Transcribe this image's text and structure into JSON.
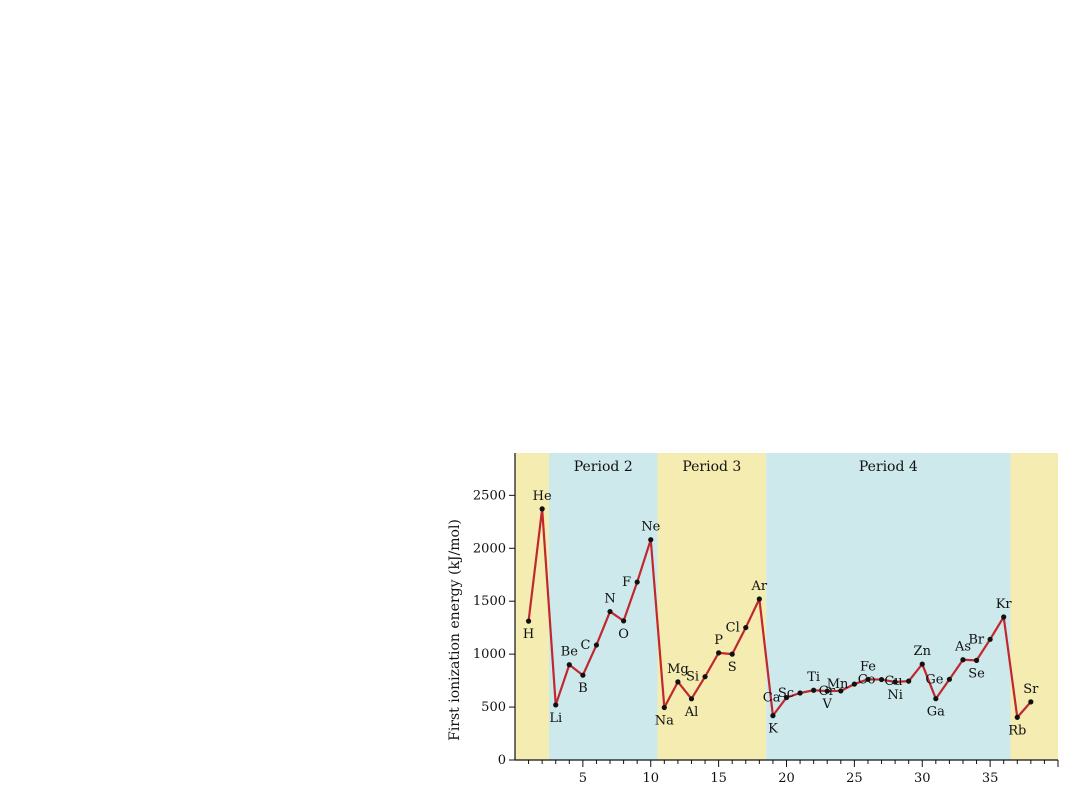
{
  "chart_data": {
    "type": "line",
    "title": "",
    "xlabel": "",
    "ylabel": "First ionization energy (kJ/mol)",
    "xlim": [
      0,
      40
    ],
    "ylim": [
      0,
      2900
    ],
    "x_ticks": [
      5,
      10,
      15,
      20,
      25,
      30,
      35
    ],
    "y_ticks": [
      0,
      500,
      1000,
      1500,
      2000,
      2500
    ],
    "y_tick_labels": [
      "0",
      "500",
      "1000",
      "1500",
      "2000",
      "2500"
    ],
    "series": [
      {
        "color": "#c0282e",
        "points": [
          {
            "x": 1,
            "y": 1312,
            "label": "H"
          },
          {
            "x": 2,
            "y": 2372,
            "label": "He"
          },
          {
            "x": 3,
            "y": 520,
            "label": "Li"
          },
          {
            "x": 4,
            "y": 900,
            "label": "Be"
          },
          {
            "x": 5,
            "y": 801,
            "label": "B"
          },
          {
            "x": 6,
            "y": 1086,
            "label": "C"
          },
          {
            "x": 7,
            "y": 1402,
            "label": "N"
          },
          {
            "x": 8,
            "y": 1314,
            "label": "O"
          },
          {
            "x": 9,
            "y": 1681,
            "label": "F"
          },
          {
            "x": 10,
            "y": 2081,
            "label": "Ne"
          },
          {
            "x": 11,
            "y": 496,
            "label": "Na"
          },
          {
            "x": 12,
            "y": 738,
            "label": "Mg"
          },
          {
            "x": 13,
            "y": 578,
            "label": "Al"
          },
          {
            "x": 14,
            "y": 787,
            "label": "Si"
          },
          {
            "x": 15,
            "y": 1012,
            "label": "P"
          },
          {
            "x": 16,
            "y": 1000,
            "label": "S"
          },
          {
            "x": 17,
            "y": 1251,
            "label": "Cl"
          },
          {
            "x": 18,
            "y": 1521,
            "label": "Ar"
          },
          {
            "x": 19,
            "y": 419,
            "label": "K"
          },
          {
            "x": 20,
            "y": 590,
            "label": "Ca"
          },
          {
            "x": 21,
            "y": 633,
            "label": "Sc"
          },
          {
            "x": 22,
            "y": 659,
            "label": "Ti"
          },
          {
            "x": 23,
            "y": 651,
            "label": "V"
          },
          {
            "x": 24,
            "y": 653,
            "label": "Cr"
          },
          {
            "x": 25,
            "y": 717,
            "label": "Mn"
          },
          {
            "x": 26,
            "y": 762,
            "label": "Fe"
          },
          {
            "x": 27,
            "y": 760,
            "label": "Co"
          },
          {
            "x": 28,
            "y": 737,
            "label": "Ni"
          },
          {
            "x": 29,
            "y": 745,
            "label": "Cu"
          },
          {
            "x": 30,
            "y": 906,
            "label": "Zn"
          },
          {
            "x": 31,
            "y": 579,
            "label": "Ga"
          },
          {
            "x": 32,
            "y": 762,
            "label": "Ge"
          },
          {
            "x": 33,
            "y": 947,
            "label": "As"
          },
          {
            "x": 34,
            "y": 941,
            "label": "Se"
          },
          {
            "x": 35,
            "y": 1140,
            "label": "Br"
          },
          {
            "x": 36,
            "y": 1351,
            "label": "Kr"
          },
          {
            "x": 37,
            "y": 403,
            "label": "Rb"
          },
          {
            "x": 38,
            "y": 549,
            "label": "Sr"
          }
        ]
      }
    ],
    "bands": [
      {
        "x0": 0,
        "x1": 2.5,
        "color": "#f4ecb0",
        "label": ""
      },
      {
        "x0": 2.5,
        "x1": 10.5,
        "color": "#cde9ec",
        "label": "Period 2"
      },
      {
        "x0": 10.5,
        "x1": 18.5,
        "color": "#f4ecb0",
        "label": "Period 3"
      },
      {
        "x0": 18.5,
        "x1": 36.5,
        "color": "#cde9ec",
        "label": "Period 4"
      },
      {
        "x0": 36.5,
        "x1": 40,
        "color": "#f4ecb0",
        "label": ""
      }
    ],
    "grid": false,
    "legend": "none"
  }
}
